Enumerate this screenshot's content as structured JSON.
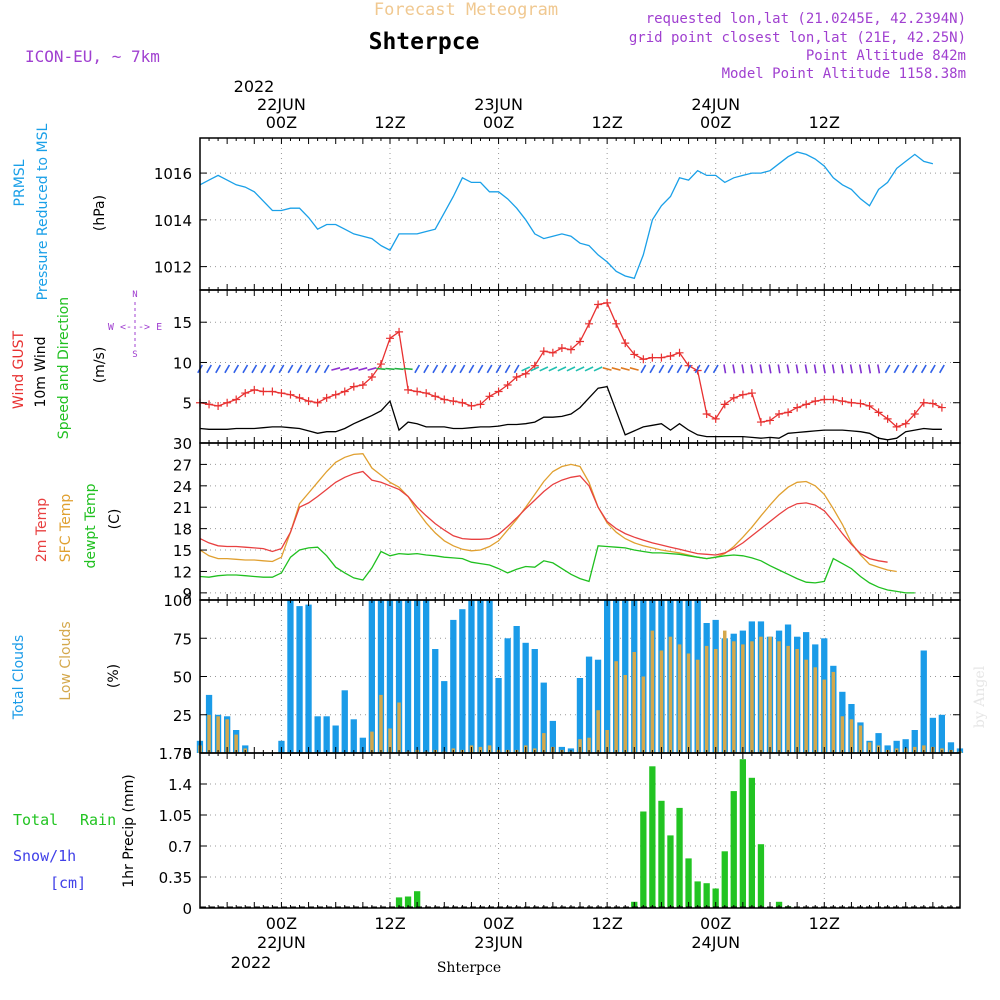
{
  "header": {
    "super_title": "Forecast Meteogram",
    "location": "Shterpce",
    "model": "ICON-EU, ~ 7km",
    "requested": "requested lon,lat (21.0245E, 42.2394N)",
    "grid_point": "grid point closest lon,lat (21E, 42.25N)",
    "point_alt": "Point Altitude 842m",
    "model_alt": "Model Point Altitude 1158.38m"
  },
  "time_axis": {
    "top_year": "2022",
    "labels": [
      {
        "t": 0,
        "l1": "22JUN",
        "l2": "00Z"
      },
      {
        "t": 12,
        "l1": "",
        "l2": "12Z"
      },
      {
        "t": 24,
        "l1": "23JUN",
        "l2": "00Z"
      },
      {
        "t": 36,
        "l1": "",
        "l2": "12Z"
      },
      {
        "t": 48,
        "l1": "24JUN",
        "l2": "00Z"
      },
      {
        "t": 60,
        "l1": "",
        "l2": "12Z"
      }
    ],
    "bottom_year": "2022",
    "footer_name": "Shterpce"
  },
  "colors": {
    "pressure": "#1aa0e8",
    "gust": "#e83030",
    "wind": "#000000",
    "dir": "#20c020",
    "temp2m": "#e84040",
    "sfc": "#e0a030",
    "dew": "#20c020",
    "clouds_total": "#1a9be8",
    "clouds_low": "#d4a84c",
    "rain": "#22c422",
    "snow": "#4040e8",
    "meta": "#a040d0",
    "super": "#f0c890"
  },
  "panel_labels": {
    "pressure": {
      "a": "PRMSL",
      "b": "Pressure Reduced to MSL",
      "unit": "(hPa)"
    },
    "wind": {
      "a": "Wind GUST",
      "b": "10m Wind",
      "c": "Speed and Direction",
      "unit": "(m/s)",
      "compass": "W <- -> E",
      "n": "N",
      "s": "S"
    },
    "temp": {
      "a": "2m Temp",
      "b": "SFC Temp",
      "c": "dewpt Temp",
      "unit": "(C)"
    },
    "clouds": {
      "a": "Total Clouds",
      "b": "Low Clouds",
      "unit": "(%)"
    },
    "precip": {
      "a": "Total",
      "a2": "Rain",
      "b": "Snow/1h",
      "c": "[cm]",
      "unit": "1hr Precip (mm)"
    }
  },
  "watermark": "by Angel",
  "chart_data": [
    {
      "type": "line",
      "title": "PRMSL Pressure Reduced to MSL",
      "ylabel": "hPa",
      "x_unit": "hours since 22JUN 00Z",
      "ylim": [
        1011,
        1017.5
      ],
      "yticks": [
        1012,
        1014,
        1016
      ],
      "t0": -9,
      "dt": 1,
      "series": [
        {
          "name": "PRMSL",
          "values": [
            1015.5,
            1015.7,
            1015.9,
            1015.7,
            1015.5,
            1015.4,
            1015.2,
            1014.8,
            1014.4,
            1014.4,
            1014.5,
            1014.5,
            1014.1,
            1013.6,
            1013.8,
            1013.8,
            1013.6,
            1013.4,
            1013.3,
            1013.2,
            1012.9,
            1012.7,
            1013.4,
            1013.4,
            1013.4,
            1013.5,
            1013.6,
            1014.3,
            1015.0,
            1015.8,
            1015.6,
            1015.6,
            1015.2,
            1015.2,
            1014.9,
            1014.5,
            1014.0,
            1013.4,
            1013.2,
            1013.3,
            1013.4,
            1013.3,
            1013.0,
            1012.9,
            1012.5,
            1012.2,
            1011.8,
            1011.6,
            1011.5,
            1012.5,
            1014.0,
            1014.6,
            1015.0,
            1015.8,
            1015.7,
            1016.1,
            1015.9,
            1015.9,
            1015.6,
            1015.8,
            1015.9,
            1016.0,
            1016.0,
            1016.1,
            1016.4,
            1016.7,
            1016.9,
            1016.8,
            1016.6,
            1016.3,
            1015.8,
            1015.5,
            1015.3,
            1014.9,
            1014.6,
            1015.3,
            1015.6,
            1016.2,
            1016.5,
            1016.8,
            1016.5,
            1016.4
          ]
        }
      ]
    },
    {
      "type": "line",
      "title": "Wind GUST, 10m Wind Speed and Direction",
      "ylabel": "m/s",
      "x_unit": "hours since 22JUN 00Z",
      "ylim": [
        0,
        19
      ],
      "yticks": [
        5,
        10,
        15
      ],
      "t0": -9,
      "dt": 1,
      "series": [
        {
          "name": "Wind GUST",
          "values": [
            5.0,
            4.8,
            4.6,
            5.0,
            5.4,
            6.2,
            6.6,
            6.4,
            6.4,
            6.2,
            6.0,
            5.6,
            5.2,
            5.0,
            5.6,
            6.0,
            6.4,
            7.0,
            7.2,
            8.2,
            9.8,
            13.0,
            13.8,
            6.6,
            6.4,
            6.2,
            5.8,
            5.4,
            5.2,
            5.0,
            4.6,
            4.8,
            5.8,
            6.4,
            7.2,
            8.2,
            8.6,
            9.6,
            11.4,
            11.2,
            11.8,
            11.6,
            12.6,
            14.8,
            17.2,
            17.4,
            14.8,
            12.4,
            11.0,
            10.4,
            10.6,
            10.6,
            10.8,
            11.2,
            9.6,
            9.0,
            3.6,
            3.0,
            4.8,
            5.6,
            6.0,
            6.2,
            2.6,
            2.8,
            3.6,
            3.8,
            4.4,
            4.8,
            5.2,
            5.4,
            5.4,
            5.2,
            5.0,
            4.9,
            4.6,
            3.8,
            3.0,
            2.0,
            2.4,
            3.6,
            5.0,
            4.9,
            4.4
          ]
        },
        {
          "name": "10m Wind",
          "values": [
            1.8,
            1.7,
            1.7,
            1.7,
            1.8,
            1.8,
            1.8,
            1.9,
            2.0,
            2.0,
            1.9,
            1.8,
            1.5,
            1.2,
            1.4,
            1.4,
            1.8,
            2.4,
            2.9,
            3.4,
            4.0,
            5.2,
            1.6,
            2.6,
            2.4,
            2.0,
            2.0,
            2.0,
            1.8,
            1.8,
            1.9,
            2.0,
            2.0,
            2.1,
            2.3,
            2.3,
            2.4,
            2.6,
            3.2,
            3.2,
            3.3,
            3.6,
            4.4,
            5.6,
            6.8,
            7.0,
            4.0,
            1.0,
            1.5,
            2.0,
            2.2,
            2.4,
            1.6,
            2.4,
            1.6,
            1.0,
            0.8,
            0.8,
            0.8,
            0.8,
            0.8,
            0.7,
            0.6,
            0.7,
            0.6,
            1.2,
            1.3,
            1.4,
            1.5,
            1.6,
            1.6,
            1.6,
            1.5,
            1.4,
            1.2,
            0.6,
            0.4,
            0.6,
            1.4,
            1.6,
            1.8,
            1.7,
            1.7
          ]
        }
      ]
    },
    {
      "type": "line",
      "title": "2m Temp, SFC Temp, dewpt Temp",
      "ylabel": "C",
      "x_unit": "hours since 22JUN 00Z",
      "ylim": [
        8,
        30
      ],
      "yticks": [
        9,
        12,
        15,
        18,
        21,
        24,
        27,
        30
      ],
      "t0": -9,
      "dt": 1,
      "series": [
        {
          "name": "2m Temp",
          "values": [
            16.6,
            16.0,
            15.6,
            15.5,
            15.5,
            15.4,
            15.3,
            15.2,
            14.8,
            15.2,
            17.5,
            21.0,
            21.6,
            22.5,
            23.5,
            24.5,
            25.2,
            25.7,
            26.0,
            24.8,
            24.5,
            24.0,
            23.5,
            22.5,
            21.0,
            19.8,
            18.7,
            17.8,
            17.0,
            16.6,
            16.5,
            16.5,
            16.6,
            17.2,
            18.3,
            19.5,
            20.8,
            22.0,
            23.2,
            24.2,
            24.8,
            25.2,
            25.4,
            24.0,
            21.0,
            19.0,
            18.0,
            17.3,
            16.8,
            16.4,
            16.0,
            15.7,
            15.4,
            15.1,
            14.8,
            14.5,
            14.4,
            14.3,
            14.6,
            15.2,
            16.0,
            17.0,
            18.0,
            19.0,
            20.0,
            20.9,
            21.5,
            21.6,
            21.3,
            20.5,
            19.0,
            17.3,
            15.8,
            14.5,
            13.8,
            13.5,
            13.3
          ]
        },
        {
          "name": "SFC Temp",
          "values": [
            15.0,
            14.2,
            13.8,
            13.8,
            13.7,
            13.6,
            13.6,
            13.5,
            13.4,
            14.0,
            17.5,
            21.5,
            23.0,
            24.5,
            26.0,
            27.3,
            28.0,
            28.4,
            28.5,
            26.5,
            25.5,
            24.5,
            23.8,
            22.5,
            20.5,
            18.8,
            17.4,
            16.3,
            15.6,
            15.1,
            14.9,
            15.0,
            15.5,
            16.3,
            17.8,
            19.3,
            21.0,
            22.8,
            24.6,
            26.0,
            26.7,
            27.0,
            26.7,
            24.5,
            21.0,
            18.8,
            17.5,
            16.6,
            16.0,
            15.6,
            15.3,
            15.0,
            14.8,
            14.6,
            14.3,
            14.0,
            13.8,
            14.0,
            14.5,
            15.5,
            16.8,
            18.2,
            19.8,
            21.3,
            22.7,
            23.8,
            24.5,
            24.6,
            24.0,
            22.8,
            20.8,
            18.6,
            16.0,
            14.3,
            13.0,
            12.6,
            12.2,
            12.0
          ]
        },
        {
          "name": "dewpt Temp",
          "values": [
            11.3,
            11.2,
            11.4,
            11.5,
            11.5,
            11.4,
            11.3,
            11.2,
            11.2,
            11.8,
            14.0,
            15.0,
            15.3,
            15.4,
            14.2,
            12.6,
            11.8,
            11.1,
            10.8,
            12.5,
            14.8,
            14.2,
            14.5,
            14.4,
            14.5,
            14.3,
            14.2,
            14.0,
            13.9,
            13.8,
            13.3,
            13.1,
            12.9,
            12.4,
            11.8,
            12.3,
            12.7,
            12.6,
            13.5,
            13.2,
            12.4,
            11.6,
            11.0,
            10.6,
            15.6,
            15.5,
            15.4,
            15.3,
            15.0,
            14.8,
            14.6,
            14.6,
            14.5,
            14.4,
            14.2,
            14.0,
            13.8,
            14.0,
            14.2,
            14.3,
            14.2,
            13.9,
            13.5,
            12.8,
            12.2,
            11.6,
            11.0,
            10.5,
            10.4,
            10.6,
            13.8,
            13.1,
            12.4,
            11.3,
            10.4,
            9.8,
            9.4,
            9.2,
            9.0,
            9.0
          ]
        }
      ]
    },
    {
      "type": "bar",
      "title": "Total Clouds, Low Clouds",
      "ylabel": "%",
      "x_unit": "hours since 22JUN 00Z",
      "ylim": [
        0,
        100
      ],
      "yticks": [
        0,
        25,
        50,
        75,
        100
      ],
      "t0": -9,
      "dt": 1,
      "series": [
        {
          "name": "Total Clouds",
          "values": [
            8,
            38,
            25,
            24,
            15,
            5,
            0,
            0,
            0,
            8,
            100,
            96,
            97,
            24,
            24,
            18,
            41,
            22,
            10,
            100,
            100,
            100,
            100,
            100,
            100,
            100,
            68,
            47,
            87,
            94,
            100,
            100,
            100,
            49,
            75,
            83,
            72,
            68,
            46,
            21,
            4,
            3,
            49,
            63,
            61,
            100,
            100,
            100,
            100,
            100,
            100,
            100,
            100,
            100,
            100,
            100,
            85,
            87,
            75,
            78,
            80,
            86,
            86,
            76,
            80,
            84,
            76,
            79,
            71,
            75,
            57,
            40,
            32,
            20,
            8,
            13,
            5,
            8,
            9,
            15,
            67,
            23,
            25,
            7,
            3
          ]
        },
        {
          "name": "Low Clouds",
          "values": [
            5,
            25,
            24,
            22,
            12,
            3,
            0,
            0,
            0,
            0,
            0,
            0,
            0,
            0,
            0,
            0,
            0,
            0,
            0,
            14,
            38,
            16,
            33,
            1,
            2,
            1,
            2,
            1,
            3,
            2,
            5,
            4,
            5,
            2,
            2,
            2,
            5,
            3,
            13,
            4,
            2,
            1,
            9,
            10,
            28,
            15,
            60,
            51,
            66,
            50,
            80,
            67,
            76,
            71,
            65,
            61,
            70,
            68,
            80,
            73,
            71,
            73,
            76,
            76,
            73,
            70,
            68,
            61,
            56,
            48,
            53,
            24,
            22,
            18,
            7,
            5,
            2,
            3,
            3,
            4,
            5,
            4,
            3,
            2,
            1
          ]
        }
      ]
    },
    {
      "type": "bar",
      "title": "1hr Precip",
      "ylabel": "mm",
      "x_unit": "hours since 22JUN 00Z",
      "ylim": [
        0,
        1.75
      ],
      "yticks": [
        0,
        0.35,
        0.7,
        1.05,
        1.4,
        1.75
      ],
      "t0": -9,
      "dt": 1,
      "series": [
        {
          "name": "Total Rain",
          "values": [
            0,
            0,
            0,
            0,
            0,
            0,
            0,
            0,
            0,
            0,
            0,
            0,
            0,
            0,
            0,
            0,
            0,
            0,
            0,
            0,
            0,
            0,
            0.12,
            0.13,
            0.19,
            0,
            0,
            0,
            0,
            0,
            0,
            0,
            0,
            0,
            0,
            0,
            0,
            0,
            0,
            0,
            0,
            0,
            0,
            0,
            0,
            0,
            0,
            0,
            0.07,
            1.09,
            1.6,
            1.21,
            0.82,
            1.13,
            0.56,
            0.3,
            0.28,
            0.22,
            0.64,
            1.32,
            1.68,
            1.47,
            0.72,
            0,
            0.07,
            0.02,
            0,
            0,
            0,
            0,
            0,
            0,
            0,
            0,
            0,
            0,
            0,
            0,
            0,
            0,
            0,
            0,
            0,
            0,
            0
          ]
        },
        {
          "name": "Snow/1h",
          "values": []
        }
      ]
    }
  ]
}
